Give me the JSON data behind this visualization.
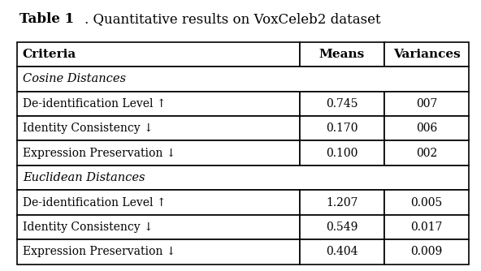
{
  "title_bold": "Table 1",
  "title_normal": ". Quantitative results on VoxCeleb2 dataset",
  "col_headers": [
    "Criteria",
    "Means",
    "Variances"
  ],
  "section1_label": "Cosine Distances",
  "section2_label": "Euclidean Distances",
  "rows": [
    {
      "criteria": "De-identification Level ↑",
      "means": "0.745",
      "variances": "007"
    },
    {
      "criteria": "Identity Consistency ↓",
      "means": "0.170",
      "variances": "006"
    },
    {
      "criteria": "Expression Preservation ↓",
      "means": "0.100",
      "variances": "002"
    },
    {
      "criteria": "De-identification Level ↑",
      "means": "1.207",
      "variances": "0.005"
    },
    {
      "criteria": "Identity Consistency ↓",
      "means": "0.549",
      "variances": "0.017"
    },
    {
      "criteria": "Expression Preservation ↓",
      "means": "0.404",
      "variances": "0.009"
    }
  ],
  "bg_color": "#ffffff",
  "border_color": "#000000",
  "figsize": [
    5.92,
    3.34
  ],
  "dpi": 100,
  "title_fontsize": 12,
  "header_fontsize": 11,
  "cell_fontsize": 10,
  "section_fontsize": 10.5
}
